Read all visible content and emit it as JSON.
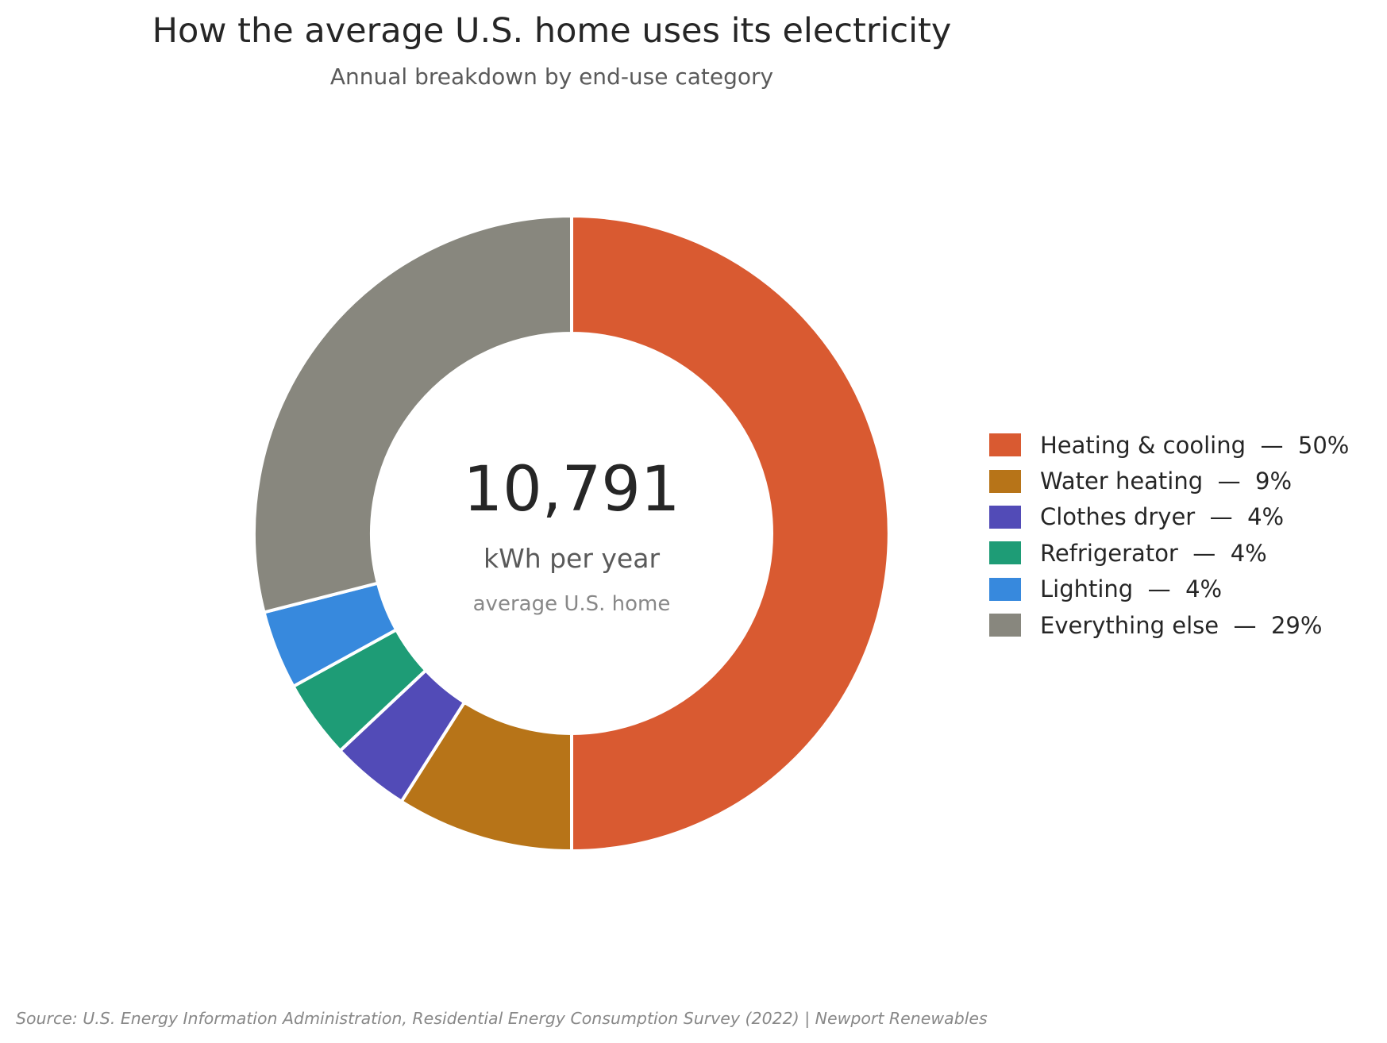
{
  "chart_data": {
    "type": "pie",
    "title": "How the average U.S. home uses its electricity",
    "subtitle": "Annual breakdown by end-use category",
    "center": {
      "value": "10,791",
      "unit": "kWh per year",
      "note": "average U.S. home"
    },
    "slices": [
      {
        "label": "Heating & cooling",
        "value": 50,
        "color": "#d95a31"
      },
      {
        "label": "Water heating",
        "value": 9,
        "color": "#b77418"
      },
      {
        "label": "Clothes dryer",
        "value": 4,
        "color": "#524bb7"
      },
      {
        "label": "Refrigerator",
        "value": 4,
        "color": "#1e9c76"
      },
      {
        "label": "Lighting",
        "value": 4,
        "color": "#3789dd"
      },
      {
        "label": "Everything else",
        "value": 29,
        "color": "#88877e"
      }
    ],
    "legend": {
      "placement": "right",
      "entries": [
        "Heating & cooling  —  50%",
        "Water heating  —  9%",
        "Clothes dryer  —  4%",
        "Refrigerator  —  4%",
        "Lighting  —  4%",
        "Everything else  —  29%"
      ]
    },
    "source": "Source: U.S. Energy Information Administration, Residential Energy Consumption Survey (2022)  |  Newport Renewables"
  }
}
